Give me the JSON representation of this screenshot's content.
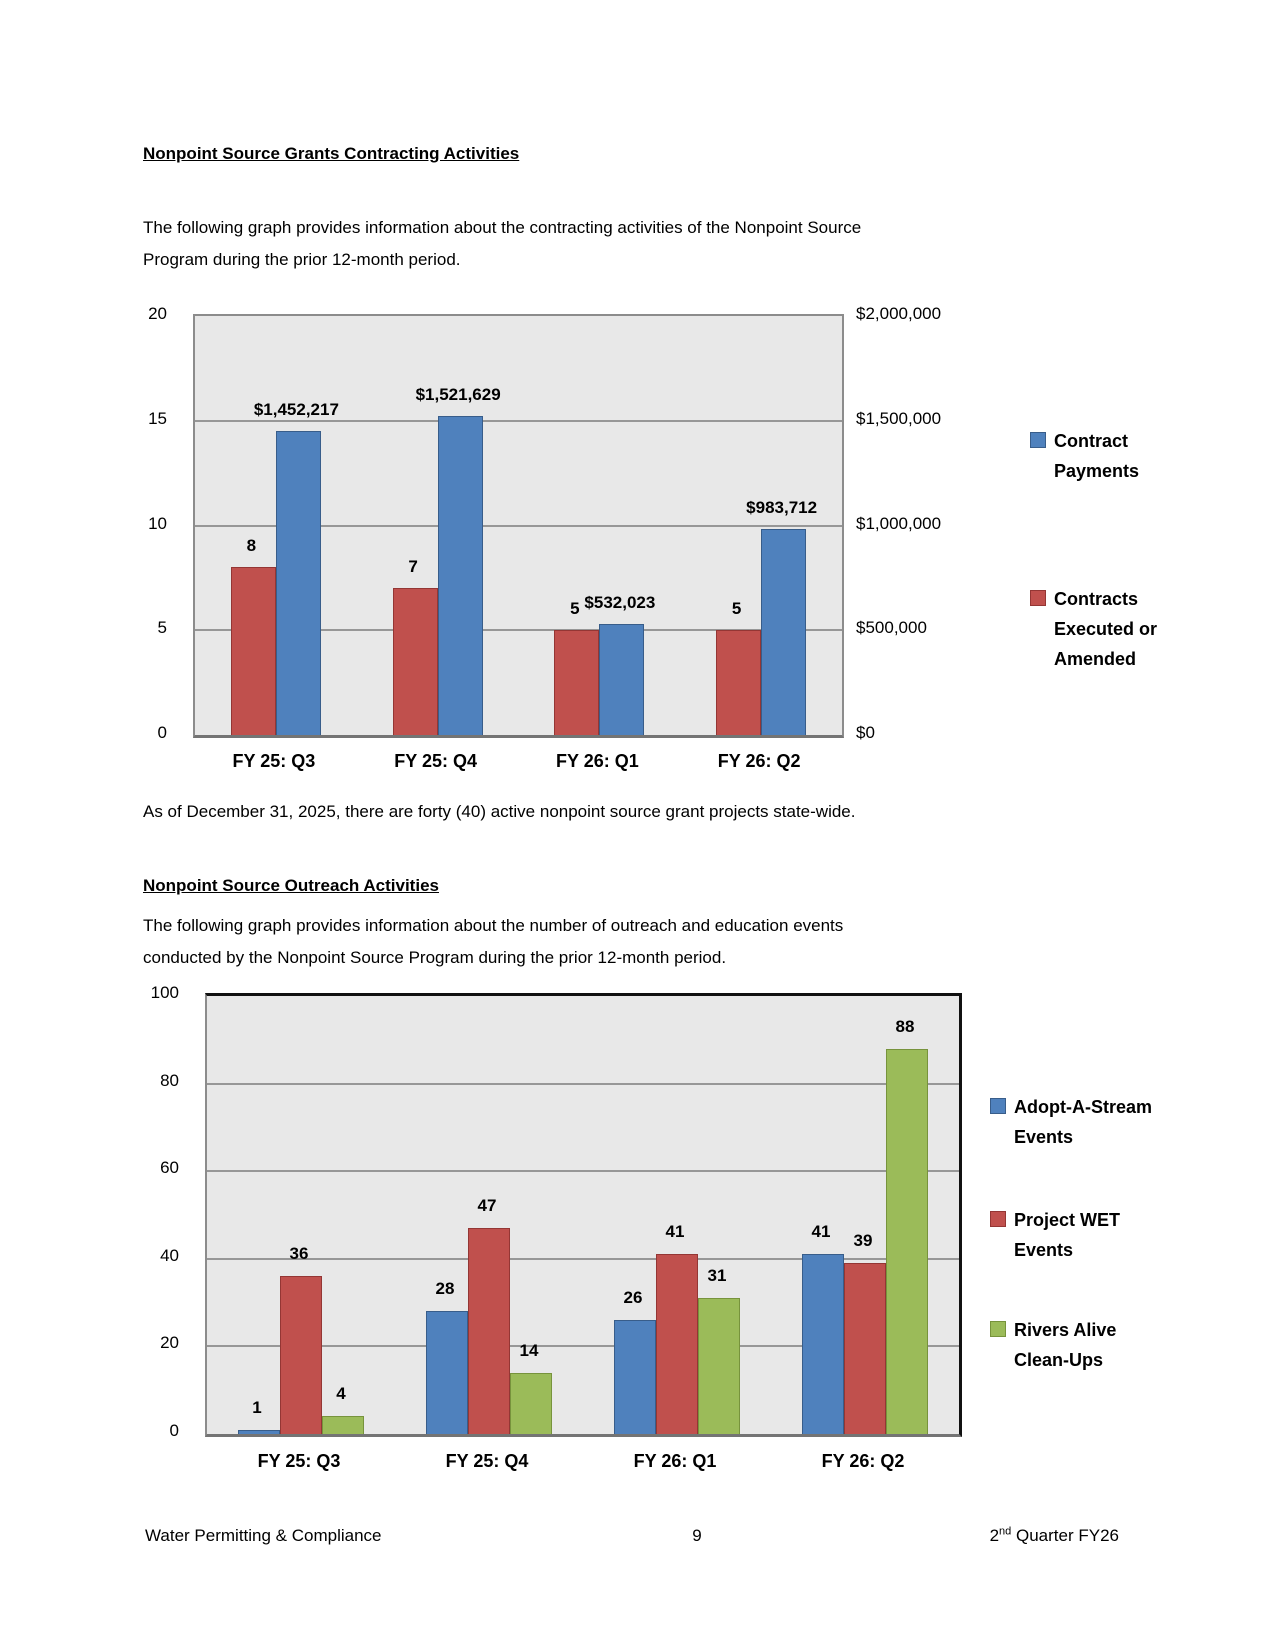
{
  "section1": {
    "heading": "Nonpoint Source Grants Contracting Activities",
    "intro": "The following graph provides information about the contracting activities of the Nonpoint Source\nProgram during the prior 12-month period.",
    "note": "As of December 31, 2025, there are forty (40) active nonpoint source grant projects state-wide."
  },
  "section2": {
    "heading": "Nonpoint Source Outreach Activities",
    "intro": "The following graph provides information about the number of outreach and education events\nconducted by the Nonpoint Source Program during the prior 12-month period."
  },
  "footer": {
    "left": "Water Permitting & Compliance",
    "page_number": "9",
    "right_prefix": "2",
    "right_sup": "nd",
    "right_rest": " Quarter FY26"
  },
  "chart_data": [
    {
      "type": "bar",
      "title": "Nonpoint Source Grants Contracting Activities (prior 12-month period)",
      "categories": [
        "FY 25: Q3",
        "FY 25: Q4",
        "FY 26: Q1",
        "FY 26: Q2"
      ],
      "left_axis": {
        "max": 20,
        "ticks": [
          "20",
          "15",
          "10",
          "5",
          "0"
        ]
      },
      "right_axis": {
        "max": 2000000,
        "ticks": [
          "$2,000,000",
          "$1,500,000",
          "$1,000,000",
          "$500,000",
          "$0"
        ]
      },
      "plot_bg": "#E8E8E8",
      "grid_color": "#979797",
      "grid": true,
      "legend_position": "right",
      "series": [
        {
          "name": "Contracts Executed or Amended",
          "axis": "left",
          "color": "#C0504D",
          "border_color": "#943634",
          "values": [
            8,
            7,
            5,
            5
          ],
          "labels": [
            "8",
            "7",
            "5",
            "5"
          ]
        },
        {
          "name": "Contract Payments",
          "axis": "right",
          "color": "#4F81BD",
          "border_color": "#385D8A",
          "values": [
            1452217,
            1521629,
            532023,
            983712
          ],
          "labels": [
            "$1,452,217",
            "$1,521,629",
            "$532,023",
            "$983,712"
          ]
        }
      ],
      "legend": [
        {
          "label": "Contract\nPayments",
          "color": "#4F81BD",
          "border_color": "#385D8A"
        },
        {
          "label": "Contracts\nExecuted or\nAmended",
          "color": "#C0504D",
          "border_color": "#943634"
        }
      ]
    },
    {
      "type": "bar",
      "title": "Nonpoint Source Outreach Activities (prior 12-month period)",
      "categories": [
        "FY 25: Q3",
        "FY 25: Q4",
        "FY 26: Q1",
        "FY 26: Q2"
      ],
      "left_axis": {
        "max": 100,
        "ticks": [
          "100",
          "80",
          "60",
          "40",
          "20",
          "0"
        ]
      },
      "plot_bg": "#E8E8E8",
      "grid_color": "#979797",
      "grid": true,
      "legend_position": "right",
      "series": [
        {
          "name": "Adopt-A-Stream Events",
          "axis": "left",
          "color": "#4F81BD",
          "border_color": "#385D8A",
          "values": [
            1,
            28,
            26,
            41
          ],
          "labels": [
            "1",
            "28",
            "26",
            "41"
          ]
        },
        {
          "name": "Project WET Events",
          "axis": "left",
          "color": "#C0504D",
          "border_color": "#943634",
          "values": [
            36,
            47,
            41,
            39
          ],
          "labels": [
            "36",
            "47",
            "41",
            "39"
          ]
        },
        {
          "name": "Rivers Alive Clean-Ups",
          "axis": "left",
          "color": "#9BBB59",
          "border_color": "#77933C",
          "values": [
            4,
            14,
            31,
            88
          ],
          "labels": [
            "4",
            "14",
            "31",
            "88"
          ]
        }
      ],
      "legend": [
        {
          "label": "Adopt-A-Stream\nEvents",
          "color": "#4F81BD",
          "border_color": "#385D8A"
        },
        {
          "label": "Project WET\nEvents",
          "color": "#C0504D",
          "border_color": "#943634"
        },
        {
          "label": "Rivers Alive\nClean-Ups",
          "color": "#9BBB59",
          "border_color": "#77933C"
        }
      ]
    }
  ]
}
